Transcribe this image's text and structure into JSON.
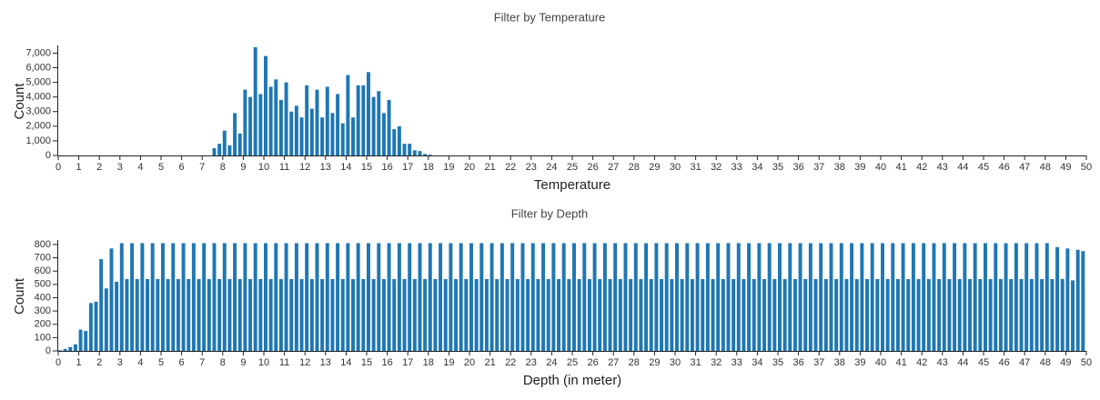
{
  "chart_data": [
    {
      "type": "histogram",
      "title": "Filter by Temperature",
      "x_label": "Temperature",
      "y_label": "Count",
      "color": "#1f77b4",
      "bins": [
        7.5,
        7.75,
        8,
        8.25,
        8.5,
        8.75,
        9,
        9.25,
        9.5,
        9.75,
        10,
        10.25,
        10.5,
        10.75,
        11,
        11.25,
        11.5,
        11.75,
        12,
        12.25,
        12.5,
        12.75,
        13,
        13.25,
        13.5,
        13.75,
        14,
        14.25,
        14.5,
        14.75,
        15,
        15.25,
        15.5,
        15.75,
        16,
        16.25,
        16.5,
        16.75,
        17,
        17.25,
        17.5,
        17.75,
        18,
        18.25
      ],
      "values": [
        500,
        800,
        1700,
        700,
        2900,
        1500,
        4500,
        4000,
        7400,
        4200,
        6800,
        4700,
        5200,
        3800,
        5000,
        3000,
        3400,
        2600,
        4800,
        3200,
        4500,
        2600,
        4700,
        2900,
        4200,
        2200,
        5500,
        2600,
        4800,
        4800,
        5700,
        4000,
        4400,
        2900,
        3800,
        1800,
        2000,
        800,
        800,
        350,
        300,
        100,
        50
      ],
      "xlim": [
        0,
        50
      ],
      "xticks": [
        0,
        1,
        2,
        3,
        4,
        5,
        6,
        7,
        8,
        9,
        10,
        11,
        12,
        13,
        14,
        15,
        16,
        17,
        18,
        19,
        20,
        21,
        22,
        23,
        24,
        25,
        26,
        27,
        28,
        29,
        30,
        31,
        32,
        33,
        34,
        35,
        36,
        37,
        38,
        39,
        40,
        41,
        42,
        43,
        44,
        45,
        46,
        47,
        48,
        49,
        50
      ],
      "ylim": [
        0,
        7400
      ],
      "yticks": [
        0,
        {
          "value": 1000,
          "label": "1,000"
        },
        {
          "value": 2000,
          "label": "2,000"
        },
        {
          "value": 3000,
          "label": "3,000"
        },
        {
          "value": 4000,
          "label": "4,000"
        },
        {
          "value": 5000,
          "label": "5,000"
        },
        {
          "value": 6000,
          "label": "6,000"
        },
        {
          "value": 7000,
          "label": "7,000"
        }
      ]
    },
    {
      "type": "histogram",
      "title": "Filter by Depth",
      "x_label": "Depth (in meter)",
      "y_label": "Count",
      "color": "#1f77b4",
      "bins": [
        0,
        0.25,
        0.5,
        0.75,
        1,
        1.25,
        1.5,
        1.75,
        2,
        2.25,
        2.5,
        2.75,
        3,
        3.25,
        3.5,
        3.75,
        4,
        4.25,
        4.5,
        4.75,
        5,
        5.25,
        5.5,
        5.75,
        6,
        6.25,
        6.5,
        6.75,
        7,
        7.25,
        7.5,
        7.75,
        8,
        8.25,
        8.5,
        8.75,
        9,
        9.25,
        9.5,
        9.75,
        10,
        10.25,
        10.5,
        10.75,
        11,
        11.25,
        11.5,
        11.75,
        12,
        12.25,
        12.5,
        12.75,
        13,
        13.25,
        13.5,
        13.75,
        14,
        14.25,
        14.5,
        14.75,
        15,
        15.25,
        15.5,
        15.75,
        16,
        16.25,
        16.5,
        16.75,
        17,
        17.25,
        17.5,
        17.75,
        18,
        18.25,
        18.5,
        18.75,
        19,
        19.25,
        19.5,
        19.75,
        20,
        20.25,
        20.5,
        20.75,
        21,
        21.25,
        21.5,
        21.75,
        22,
        22.25,
        22.5,
        22.75,
        23,
        23.25,
        23.5,
        23.75,
        24,
        24.25,
        24.5,
        24.75,
        25,
        25.25,
        25.5,
        25.75,
        26,
        26.25,
        26.5,
        26.75,
        27,
        27.25,
        27.5,
        27.75,
        28,
        28.25,
        28.5,
        28.75,
        29,
        29.25,
        29.5,
        29.75,
        30,
        30.25,
        30.5,
        30.75,
        31,
        31.25,
        31.5,
        31.75,
        32,
        32.25,
        32.5,
        32.75,
        33,
        33.25,
        33.5,
        33.75,
        34,
        34.25,
        34.5,
        34.75,
        35,
        35.25,
        35.5,
        35.75,
        36,
        36.25,
        36.5,
        36.75,
        37,
        37.25,
        37.5,
        37.75,
        38,
        38.25,
        38.5,
        38.75,
        39,
        39.25,
        39.5,
        39.75,
        40,
        40.25,
        40.5,
        40.75,
        41,
        41.25,
        41.5,
        41.75,
        42,
        42.25,
        42.5,
        42.75,
        43,
        43.25,
        43.5,
        43.75,
        44,
        44.25,
        44.5,
        44.75,
        45,
        45.25,
        45.5,
        45.75,
        46,
        46.25,
        46.5,
        46.75,
        47,
        47.25,
        47.5,
        47.75,
        48,
        48.25,
        48.5,
        48.75,
        49,
        49.25,
        49.5,
        49.75,
        50
      ],
      "values": [
        5,
        15,
        30,
        50,
        160,
        150,
        360,
        370,
        690,
        470,
        770,
        520,
        810,
        540,
        810,
        540,
        810,
        540,
        810,
        540,
        810,
        540,
        810,
        540,
        810,
        540,
        810,
        540,
        810,
        540,
        810,
        540,
        810,
        540,
        810,
        540,
        810,
        540,
        810,
        540,
        810,
        540,
        810,
        540,
        810,
        540,
        810,
        540,
        810,
        540,
        810,
        540,
        810,
        540,
        810,
        540,
        810,
        540,
        810,
        540,
        810,
        540,
        810,
        540,
        810,
        540,
        810,
        540,
        810,
        540,
        810,
        540,
        810,
        540,
        810,
        540,
        810,
        540,
        810,
        540,
        810,
        540,
        810,
        540,
        810,
        540,
        810,
        540,
        810,
        540,
        810,
        540,
        810,
        540,
        810,
        540,
        810,
        540,
        810,
        540,
        810,
        540,
        810,
        540,
        810,
        540,
        810,
        540,
        810,
        540,
        810,
        540,
        810,
        540,
        810,
        540,
        810,
        540,
        810,
        540,
        810,
        540,
        810,
        540,
        810,
        540,
        810,
        540,
        810,
        540,
        810,
        540,
        810,
        540,
        810,
        540,
        810,
        540,
        810,
        540,
        810,
        540,
        810,
        540,
        810,
        540,
        810,
        540,
        810,
        540,
        810,
        540,
        810,
        540,
        810,
        540,
        810,
        540,
        810,
        540,
        810,
        540,
        810,
        540,
        810,
        540,
        810,
        540,
        810,
        540,
        810,
        540,
        810,
        540,
        810,
        540,
        810,
        540,
        810,
        540,
        810,
        540,
        810,
        540,
        810,
        540,
        810,
        540,
        810,
        540,
        810,
        540,
        810,
        540,
        780,
        540,
        770,
        530,
        760,
        750
      ],
      "xlim": [
        0,
        50
      ],
      "xticks": [
        0,
        1,
        2,
        3,
        4,
        5,
        6,
        7,
        8,
        9,
        10,
        11,
        12,
        13,
        14,
        15,
        16,
        17,
        18,
        19,
        20,
        21,
        22,
        23,
        24,
        25,
        26,
        27,
        28,
        29,
        30,
        31,
        32,
        33,
        34,
        35,
        36,
        37,
        38,
        39,
        40,
        41,
        42,
        43,
        44,
        45,
        46,
        47,
        48,
        49,
        50
      ],
      "ylim": [
        0,
        820
      ],
      "yticks": [
        0,
        100,
        200,
        300,
        400,
        500,
        600,
        700,
        800
      ]
    }
  ]
}
